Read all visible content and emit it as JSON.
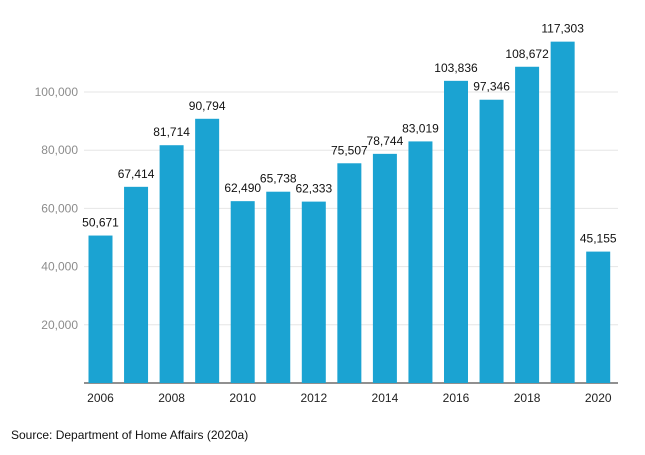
{
  "chart_data": {
    "type": "bar",
    "categories": [
      "2006",
      "2007",
      "2008",
      "2009",
      "2010",
      "2011",
      "2012",
      "2013",
      "2014",
      "2015",
      "2016",
      "2017",
      "2018",
      "2019",
      "2020"
    ],
    "x_tick_labels": [
      "2006",
      "2008",
      "2010",
      "2012",
      "2014",
      "2016",
      "2018",
      "2020"
    ],
    "values": [
      50671,
      67414,
      81714,
      90794,
      62490,
      65738,
      62333,
      75507,
      78744,
      83019,
      103836,
      97346,
      108672,
      117303,
      45155
    ],
    "data_labels": [
      "50,671",
      "67,414",
      "81,714",
      "90,794",
      "62,490",
      "65,738",
      "62,333",
      "75,507",
      "78,744",
      "83,019",
      "103,836",
      "97,346",
      "108,672",
      "117,303",
      "45,155"
    ],
    "y_ticks": [
      20000,
      40000,
      60000,
      80000,
      100000
    ],
    "y_tick_labels": [
      "20,000",
      "40,000",
      "60,000",
      "80,000",
      "100,000"
    ],
    "ylim": [
      0,
      120000
    ],
    "grid": true,
    "bar_color": "#1ba3d2",
    "title": "",
    "xlabel": "",
    "ylabel": ""
  },
  "source": "Source: Department of Home Affairs (2020a)"
}
